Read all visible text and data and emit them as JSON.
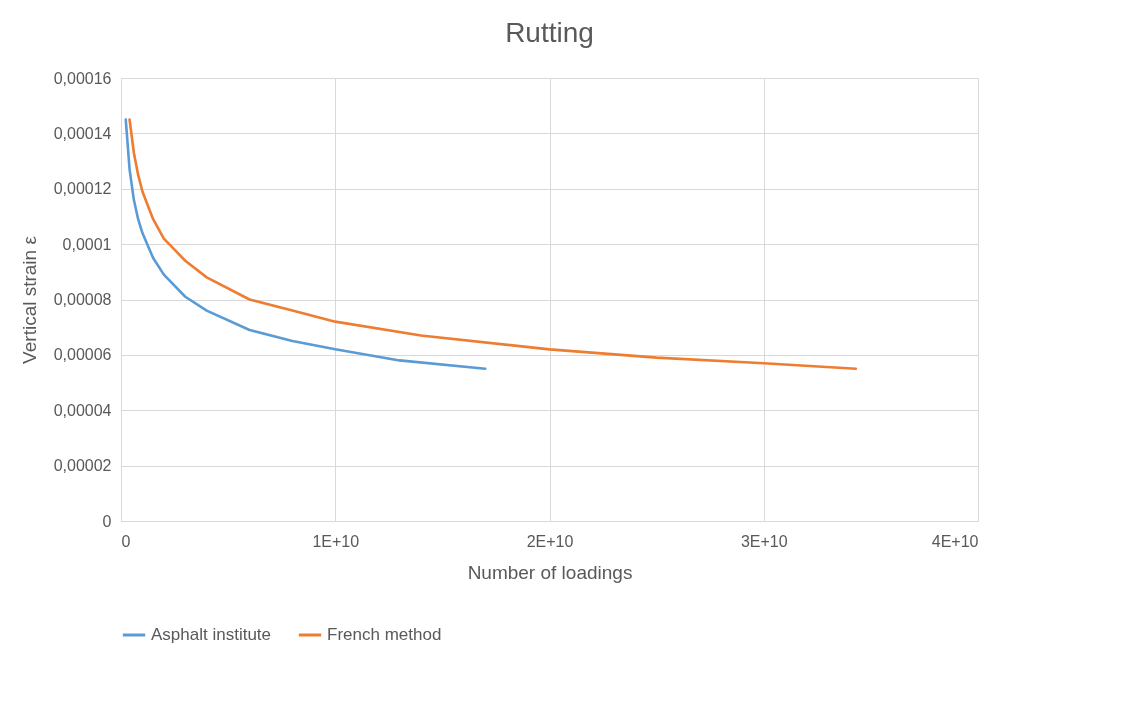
{
  "chart_data": {
    "type": "line",
    "title": "Rutting",
    "xlabel": "Number of loadings",
    "ylabel": "Vertical strain ε",
    "xlim": [
      0,
      40000000000
    ],
    "ylim": [
      0,
      0.00016
    ],
    "xticks": [
      0,
      {
        "value": 10000000000,
        "label": "1E+10"
      },
      {
        "value": 20000000000,
        "label": "2E+10"
      },
      {
        "value": 30000000000,
        "label": "3E+10"
      },
      {
        "value": 40000000000,
        "label": "4E+10"
      }
    ],
    "yticks": [
      0,
      {
        "value": 2e-05,
        "label": "0,00002"
      },
      {
        "value": 4e-05,
        "label": "0,00004"
      },
      {
        "value": 6e-05,
        "label": "0,00006"
      },
      {
        "value": 8e-05,
        "label": "0,00008"
      },
      {
        "value": 0.0001,
        "label": "0,0001"
      },
      {
        "value": 0.00012,
        "label": "0,00012"
      },
      {
        "value": 0.00014,
        "label": "0,00014"
      },
      {
        "value": 0.00016,
        "label": "0,00016"
      }
    ],
    "grid": true,
    "legend": "bottom",
    "marker": "none",
    "line_style": "solid",
    "series": [
      {
        "name": "Asphalt institute",
        "color": "#5b9bd5",
        "x": [
          222000000,
          400000000,
          600000000,
          800000000,
          1000000000,
          1500000000,
          2000000000,
          3000000000,
          4000000000,
          6000000000,
          8000000000,
          10000000000,
          13000000000,
          17000000000
        ],
        "values": [
          0.000145,
          0.000127,
          0.000116,
          0.000109,
          0.000104,
          9.5e-05,
          8.9e-05,
          8.1e-05,
          7.6e-05,
          6.9e-05,
          6.5e-05,
          6.2e-05,
          5.8e-05,
          5.5e-05
        ]
      },
      {
        "name": "French method",
        "color": "#ed7d31",
        "x": [
          400000000,
          600000000,
          800000000,
          1000000000,
          1500000000,
          2000000000,
          3000000000,
          4000000000,
          6000000000,
          8000000000,
          10000000000,
          14000000000,
          20000000000,
          25000000000,
          30000000000,
          34300000000
        ],
        "values": [
          0.000145,
          0.000133,
          0.000125,
          0.000119,
          0.000109,
          0.000102,
          9.4e-05,
          8.8e-05,
          8e-05,
          7.6e-05,
          7.2e-05,
          6.7e-05,
          6.2e-05,
          5.9e-05,
          5.7e-05,
          5.5e-05
        ]
      }
    ]
  }
}
